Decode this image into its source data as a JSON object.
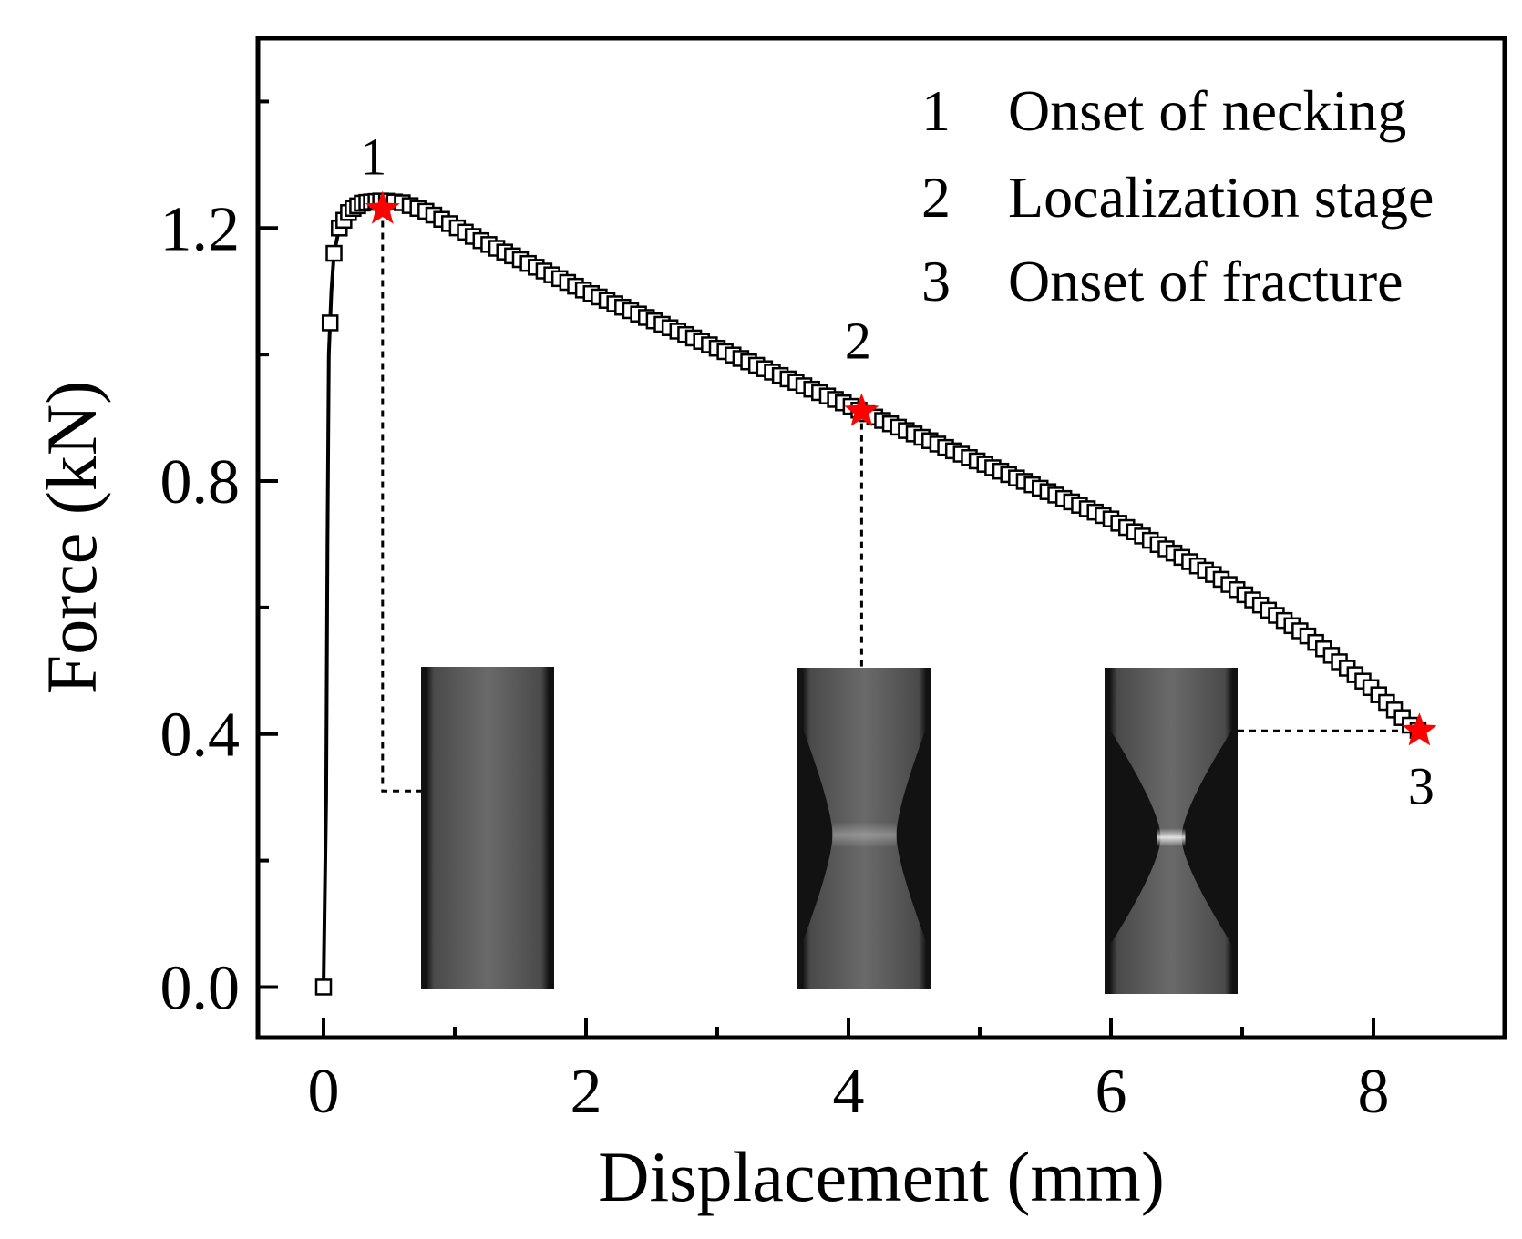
{
  "chart_data": {
    "type": "scatter",
    "xlabel": "Displacement (mm)",
    "ylabel": "Force (kN)",
    "xlim": [
      -0.5,
      9.0
    ],
    "ylim": [
      -0.08,
      1.5
    ],
    "x_ticks": [
      0,
      2,
      4,
      6,
      8
    ],
    "x_tick_labels": [
      "0",
      "2",
      "4",
      "6",
      "8"
    ],
    "y_ticks": [
      0.0,
      0.4,
      0.8,
      1.2
    ],
    "y_tick_labels": [
      "0.0",
      "0.4",
      "0.8",
      "1.2"
    ],
    "x_minor_ticks": [
      1,
      3,
      5,
      7
    ],
    "y_minor_ticks": [
      0.2,
      0.6,
      1.0,
      1.4
    ],
    "grid": false,
    "legend_position": "top-right",
    "legend": [
      {
        "number": "1",
        "label": "Onset of necking"
      },
      {
        "number": "2",
        "label": "Localization stage"
      },
      {
        "number": "3",
        "label": "Onset of fracture"
      }
    ],
    "series": [
      {
        "name": "Force-displacement",
        "marker": "open-square",
        "line": true,
        "curve_points": [
          [
            0.0,
            0.0
          ],
          [
            0.02,
            0.3
          ],
          [
            0.03,
            0.7
          ],
          [
            0.04,
            1.0
          ],
          [
            0.06,
            1.1
          ],
          [
            0.08,
            1.16
          ],
          [
            0.12,
            1.2
          ],
          [
            0.2,
            1.228
          ],
          [
            0.3,
            1.24
          ],
          [
            0.45,
            1.243
          ],
          [
            0.6,
            1.24
          ],
          [
            0.8,
            1.225
          ],
          [
            1.2,
            1.18
          ],
          [
            2.0,
            1.1
          ],
          [
            3.0,
            1.01
          ],
          [
            4.0,
            0.92
          ],
          [
            4.1,
            0.91
          ],
          [
            5.0,
            0.83
          ],
          [
            6.0,
            0.74
          ],
          [
            6.8,
            0.65
          ],
          [
            7.5,
            0.555
          ],
          [
            8.0,
            0.47
          ],
          [
            8.3,
            0.41
          ],
          [
            8.35,
            0.405
          ]
        ]
      }
    ],
    "stage_markers": [
      {
        "label": "1",
        "x": 0.45,
        "y": 1.23,
        "color": "#ff0000",
        "leader_end_y": 0.31
      },
      {
        "label": "2",
        "x": 4.1,
        "y": 0.91,
        "color": "#ff0000",
        "leader_end_y": 0.55
      },
      {
        "label": "3",
        "x": 8.35,
        "y": 0.405,
        "color": "#ff0000",
        "leader_end_y": 0.405
      }
    ],
    "specimen_images": [
      {
        "stage": "1",
        "necking": 0.0,
        "fracture": false
      },
      {
        "stage": "2",
        "necking": 0.22,
        "fracture": false
      },
      {
        "stage": "3",
        "necking": 0.38,
        "fracture": true
      }
    ]
  },
  "colors": {
    "axis": "#000000",
    "marker_fill": "#ffffff",
    "star": "#ff0000",
    "specimen_dark": "#121212",
    "specimen_body": "#5a5a5a",
    "specimen_bright": "#e8e8e8"
  }
}
